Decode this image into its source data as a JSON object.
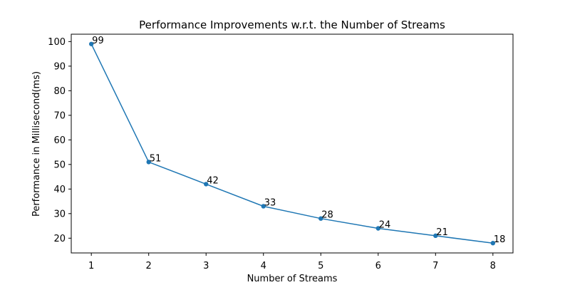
{
  "chart_data": {
    "type": "line",
    "title": "Performance Improvements w.r.t. the Number of Streams",
    "xlabel": "Number of Streams",
    "ylabel": "Performance in Millisecond(ms)",
    "x": [
      1,
      2,
      3,
      4,
      5,
      6,
      7,
      8
    ],
    "series": [
      {
        "values": [
          99,
          51,
          42,
          33,
          28,
          24,
          21,
          18
        ]
      }
    ],
    "data_labels": [
      "99",
      "51",
      "42",
      "33",
      "28",
      "24",
      "21",
      "18"
    ],
    "xticks": [
      1,
      2,
      3,
      4,
      5,
      6,
      7,
      8
    ],
    "yticks": [
      20,
      30,
      40,
      50,
      60,
      70,
      80,
      90,
      100
    ],
    "xlim": [
      0.65,
      8.35
    ],
    "ylim": [
      14.0,
      103.0
    ],
    "grid": false,
    "markers": true,
    "colors": {
      "line": "#1f77b4",
      "marker": "#1f77b4",
      "axes": "#000000"
    }
  }
}
